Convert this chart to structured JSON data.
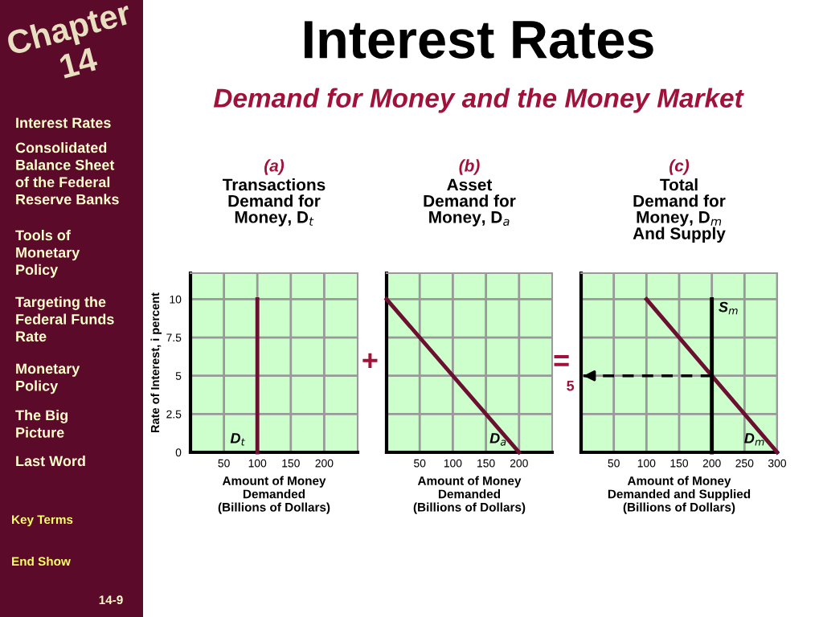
{
  "chart_data": [
    {
      "type": "other",
      "title": "Interest Rates",
      "subtitle": "Demand for Money and the Money Market",
      "annotations": [
        "Chapter 14",
        "Interest Rates",
        "Consolidated\nBalance Sheet\nof the Federal\nReserve Banks",
        "Tools of\nMonetary\nPolicy",
        "Targeting the\nFederal Funds\nRate",
        "Monetary\nPolicy",
        "The Big\nPicture",
        "Last Word",
        "Key Terms",
        "End Show",
        "14-9"
      ]
    },
    {
      "type": "line",
      "title": "(a)",
      "subtitle": "Transactions\nDemand for\nMoney, D$_{t}$",
      "xlabel": "Amount of Money\nDemanded\n(Billions of Dollars)",
      "ylabel": "Rate of Interest, i percent",
      "xlim": [
        0,
        250
      ],
      "xticks": [
        50,
        100,
        150,
        200
      ],
      "ylim": [
        0,
        11.7
      ],
      "yticks": [
        0,
        2.5,
        5,
        7.5,
        10
      ],
      "grid": true,
      "series": [
        {
          "name": "D$_{t}$",
          "color": "#6b1030",
          "x": [
            100,
            100
          ],
          "values": [
            0,
            10
          ]
        }
      ]
    },
    {
      "type": "line",
      "title": "(b)",
      "subtitle": "Asset\nDemand for\nMoney, D$_{a}$",
      "xlabel": "Amount of Money\nDemanded\n(Billions of Dollars)",
      "annotations": [
        "+"
      ],
      "xlim": [
        0,
        250
      ],
      "xticks": [
        50,
        100,
        150,
        200
      ],
      "ylim": [
        0,
        11.7
      ],
      "yticks": [
        0,
        2.5,
        5,
        7.5,
        10
      ],
      "grid": true,
      "tick_labels": "x",
      "series": [
        {
          "name": "D$_{a}$",
          "color": "#6b1030",
          "x": [
            0,
            200
          ],
          "values": [
            10,
            0
          ]
        }
      ]
    },
    {
      "type": "line",
      "title": "(c)",
      "subtitle": "Total\nDemand for\nMoney, D$_{m}$\nAnd Supply",
      "xlabel": "Amount of Money\nDemanded and Supplied\n(Billions of Dollars)",
      "annotations": [
        "=",
        {
          "text": "5",
          "x": 0,
          "y": 5
        },
        {
          "text": "S$_{m}$",
          "x": 200,
          "y": 10
        }
      ],
      "xlim": [
        0,
        300
      ],
      "xticks": [
        50,
        100,
        150,
        200,
        250,
        300
      ],
      "ylim": [
        0,
        11.7
      ],
      "yticks": [
        0,
        2.5,
        5,
        7.5,
        10
      ],
      "grid": true,
      "tick_labels": "x",
      "series": [
        {
          "name": "D$_{m}$",
          "color": "#6b1030",
          "x": [
            100,
            300
          ],
          "values": [
            10,
            0
          ]
        },
        {
          "color": "#000000",
          "x": [
            200,
            200
          ],
          "values": [
            0,
            10
          ]
        },
        {
          "color": "#000000",
          "x": [
            200,
            0
          ],
          "values": [
            5,
            5
          ],
          "line_style": "dashed"
        }
      ]
    }
  ]
}
